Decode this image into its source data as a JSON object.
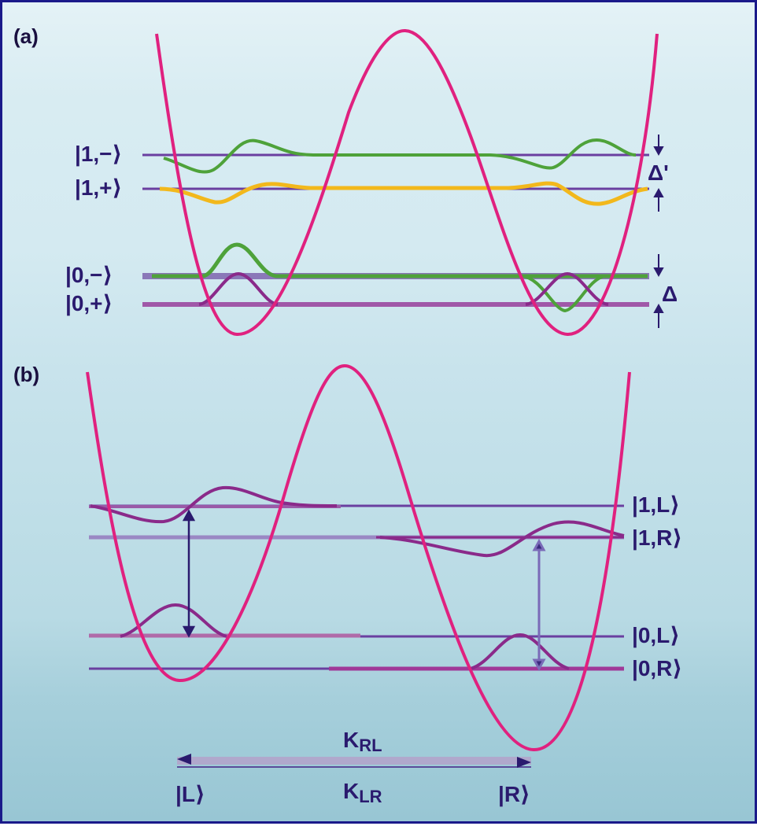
{
  "panel_a": {
    "label": "(a)",
    "states": {
      "s1m": "|1,−⟩",
      "s1p": "|1,+⟩",
      "s0m": "|0,−⟩",
      "s0p": "|0,+⟩"
    },
    "splitting_upper": "Δ'",
    "splitting_lower": "Δ"
  },
  "panel_b": {
    "label": "(b)",
    "states": {
      "s1L": "|1,L⟩",
      "s1R": "|1,R⟩",
      "s0L": "|0,L⟩",
      "s0R": "|0,R⟩"
    },
    "rate_top_main": "K",
    "rate_top_sub": "RL",
    "rate_bottom_main": "K",
    "rate_bottom_sub": "LR",
    "well_left": "|L⟩",
    "well_right": "|R⟩"
  },
  "colors": {
    "potential": "#e0217f",
    "level": "#6a3fa0",
    "wave_green": "#4ea23a",
    "wave_yellow": "#f2b81c",
    "wave_purple": "#8a2a8a",
    "border": "#1a1a8a"
  }
}
